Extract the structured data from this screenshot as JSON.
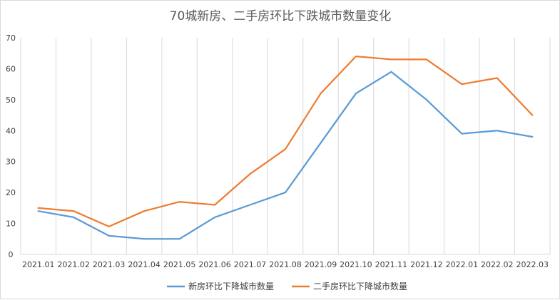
{
  "chart_data": {
    "type": "line",
    "title": "70城新房、二手房环比下跌城市数量变化",
    "xlabel": "",
    "ylabel": "",
    "ylim": [
      0,
      70
    ],
    "yticks": [
      0,
      10,
      20,
      30,
      40,
      50,
      60,
      70
    ],
    "grid": "vertical",
    "legend_position": "bottom",
    "categories": [
      "2021.01",
      "2021.02",
      "2021.03",
      "2021.04",
      "2021.05",
      "2021.06",
      "2021.07",
      "2021.08",
      "2021.09",
      "2021.10",
      "2021.11",
      "2021.12",
      "2022.01",
      "2022.02",
      "2022.03"
    ],
    "series": [
      {
        "name": "新房环比下降城市数量",
        "color": "#5B9BD5",
        "values": [
          14,
          12,
          6,
          5,
          5,
          12,
          16,
          20,
          36,
          52,
          59,
          50,
          39,
          40,
          38
        ]
      },
      {
        "name": "二手房环比下降城市数量",
        "color": "#ED7D31",
        "values": [
          15,
          14,
          9,
          14,
          17,
          16,
          26,
          34,
          52,
          64,
          63,
          63,
          55,
          57,
          45
        ]
      }
    ]
  }
}
